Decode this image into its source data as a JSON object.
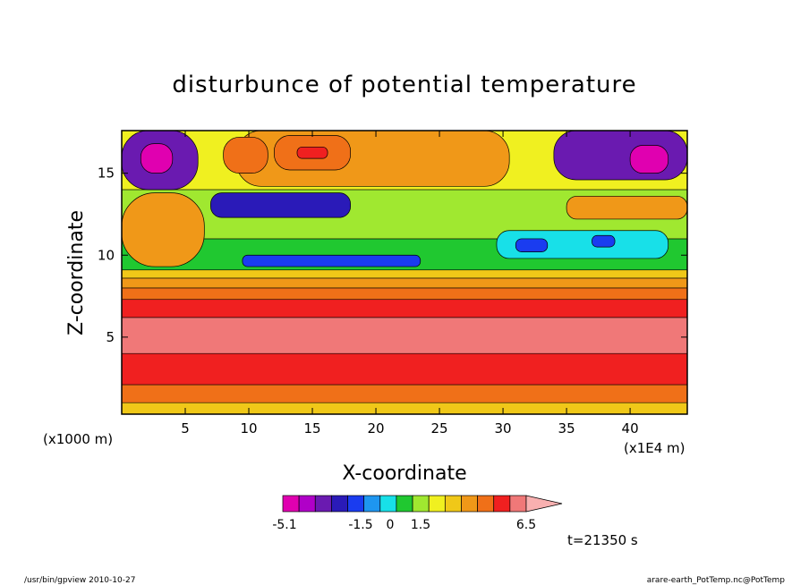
{
  "chart_data": {
    "type": "heatmap",
    "title": "disturbunce of potential temperature",
    "xlabel": "X-coordinate",
    "ylabel": "Z-coordinate",
    "x_unit_label": "(x1000 m)",
    "y_unit_label": "(x1E4 m)",
    "xlim": [
      0,
      44.5
    ],
    "ylim": [
      0.3,
      17.6
    ],
    "x_ticks": [
      5,
      10,
      15,
      20,
      25,
      30,
      35,
      40
    ],
    "x_tick_labels": [
      "5",
      "10",
      "15",
      "20",
      "25",
      "30",
      "35",
      "40"
    ],
    "y_ticks": [
      5,
      10,
      15
    ],
    "y_tick_labels": [
      "5",
      "10",
      "15"
    ],
    "colorbar": {
      "colors": [
        "#e000b0",
        "#b000c8",
        "#6a1ab0",
        "#2a1ab8",
        "#1a3cf0",
        "#1e96f0",
        "#18e0e8",
        "#20c830",
        "#a0e830",
        "#f0f020",
        "#f0c818",
        "#f09818",
        "#f07018",
        "#f02020",
        "#f07878",
        "#f8b0b0"
      ],
      "labels": [
        "-5.1",
        "-1.5",
        "0",
        "1.5",
        "6.5"
      ],
      "extend": "max"
    },
    "layers": [
      {
        "z": [
          0.3,
          1.0
        ],
        "color": "#f0c818",
        "value": 1.2
      },
      {
        "z": [
          1.0,
          2.1
        ],
        "color": "#f07018",
        "value": 2.0
      },
      {
        "z": [
          2.1,
          4.0
        ],
        "color": "#f02020",
        "value": 4.5
      },
      {
        "z": [
          4.0,
          6.2
        ],
        "color": "#f07878",
        "value": 6.2
      },
      {
        "z": [
          6.2,
          7.3
        ],
        "color": "#f02020",
        "value": 4.5
      },
      {
        "z": [
          7.3,
          8.0
        ],
        "color": "#f07018",
        "value": 2.5
      },
      {
        "z": [
          8.0,
          8.6
        ],
        "color": "#f09818",
        "value": 1.8
      },
      {
        "z": [
          8.6,
          9.1
        ],
        "color": "#f0c818",
        "value": 1.2
      },
      {
        "z": [
          9.1,
          11.0
        ],
        "color": "#20c830",
        "value": 0
      },
      {
        "z": [
          11.0,
          14.0
        ],
        "color": "#a0e830",
        "value": 0.3
      },
      {
        "z": [
          14.0,
          17.6
        ],
        "color": "#f0f020",
        "value": 0.6
      }
    ],
    "regions": [
      {
        "name": "upper-warm-core",
        "x": [
          9.0,
          30.5
        ],
        "z": [
          14.2,
          17.6
        ],
        "color": "#f09818",
        "value": 1.5
      },
      {
        "name": "warm-cell-15",
        "x": [
          12.0,
          18.0
        ],
        "z": [
          15.2,
          17.3
        ],
        "color": "#f07018",
        "value": 2.5
      },
      {
        "name": "warm-max-15",
        "x": [
          13.8,
          16.2
        ],
        "z": [
          15.9,
          16.6
        ],
        "color": "#f02020",
        "value": 3.5
      },
      {
        "name": "warm-cell-9",
        "x": [
          8.0,
          11.5
        ],
        "z": [
          15.0,
          17.2
        ],
        "color": "#f07018",
        "value": 2.5
      },
      {
        "name": "upper-cold-left",
        "x": [
          0,
          6.0
        ],
        "z": [
          14.0,
          17.6
        ],
        "color": "#6a1ab0",
        "value": -3.0
      },
      {
        "name": "upper-cold-left-core",
        "x": [
          1.5,
          4.0
        ],
        "z": [
          15.0,
          16.8
        ],
        "color": "#e000b0",
        "value": -5.1
      },
      {
        "name": "upper-cold-right",
        "x": [
          34.0,
          44.5
        ],
        "z": [
          14.6,
          17.6
        ],
        "color": "#6a1ab0",
        "value": -3.0
      },
      {
        "name": "upper-cold-right-core",
        "x": [
          40.0,
          43.0
        ],
        "z": [
          15.0,
          16.7
        ],
        "color": "#e000b0",
        "value": -5.1
      },
      {
        "name": "left-warm-band",
        "x": [
          0,
          6.5
        ],
        "z": [
          9.3,
          13.8
        ],
        "color": "#f09818",
        "value": 1.5
      },
      {
        "name": "jet-cold-streak-upper",
        "x": [
          7.0,
          18.0
        ],
        "z": [
          12.3,
          13.8
        ],
        "color": "#2a1ab8",
        "value": -2.0
      },
      {
        "name": "jet-cold-streak-lower",
        "x": [
          9.5,
          23.5
        ],
        "z": [
          9.3,
          10.0
        ],
        "color": "#1a3cf0",
        "value": -1.5
      },
      {
        "name": "right-cold-patch",
        "x": [
          29.5,
          43.0
        ],
        "z": [
          9.8,
          11.5
        ],
        "color": "#18e0e8",
        "value": -0.5
      },
      {
        "name": "right-cold-core-1",
        "x": [
          31.0,
          33.5
        ],
        "z": [
          10.2,
          11.0
        ],
        "color": "#1a3cf0",
        "value": -1.5
      },
      {
        "name": "right-cold-core-2",
        "x": [
          37.0,
          38.8
        ],
        "z": [
          10.5,
          11.2
        ],
        "color": "#1a3cf0",
        "value": -1.5
      },
      {
        "name": "mid-warm-patch",
        "x": [
          35.0,
          44.5
        ],
        "z": [
          12.2,
          13.6
        ],
        "color": "#f09818",
        "value": 1.5
      }
    ],
    "annotation": "t=21350 s"
  },
  "footer": {
    "left": "/usr/bin/gpview   2010-10-27",
    "right": "arare-earth_PotTemp.nc@PotTemp"
  }
}
